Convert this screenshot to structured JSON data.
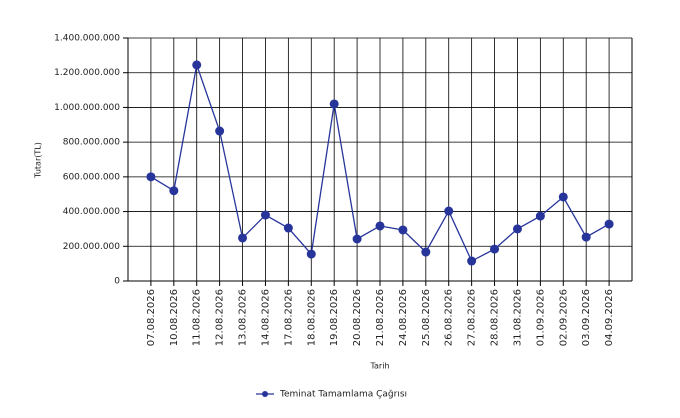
{
  "chart_data": {
    "type": "line",
    "x_label": "Tarih",
    "y_label": "Tutar(TL)",
    "categories": [
      "07.08.2026",
      "10.08.2026",
      "11.08.2026",
      "12.08.2026",
      "13.08.2026",
      "14.08.2026",
      "17.08.2026",
      "18.08.2026",
      "19.08.2026",
      "20.08.2026",
      "21.08.2026",
      "24.08.2026",
      "25.08.2026",
      "26.08.2026",
      "27.08.2026",
      "28.08.2026",
      "31.08.2026",
      "01.09.2026",
      "02.09.2026",
      "03.09.2026",
      "04.09.2026"
    ],
    "series": [
      {
        "name": "Teminat Tamamlama Çağrısı",
        "color": "#27359b",
        "values": [
          600000000,
          520000000,
          1245000000,
          864000000,
          248000000,
          380000000,
          305000000,
          155000000,
          1020000000,
          242000000,
          317000000,
          294000000,
          167000000,
          403000000,
          115000000,
          184000000,
          300000000,
          374000000,
          484000000,
          253000000,
          328000000
        ]
      }
    ],
    "ylim": [
      0,
      1400000000
    ],
    "yticks": [
      0,
      {
        "value": 200000000,
        "label": "200.000.000"
      },
      {
        "value": 400000000,
        "label": "400.000.000"
      },
      {
        "value": 600000000,
        "label": "600.000.000"
      },
      {
        "value": 800000000,
        "label": "800.000.000"
      },
      {
        "value": 1000000000,
        "label": "1.000.000.000"
      },
      {
        "value": 1200000000,
        "label": "1.200.000.000"
      },
      {
        "value": 1400000000,
        "label": "1.400.000.000"
      }
    ],
    "grid": true,
    "legend": "bottom"
  }
}
